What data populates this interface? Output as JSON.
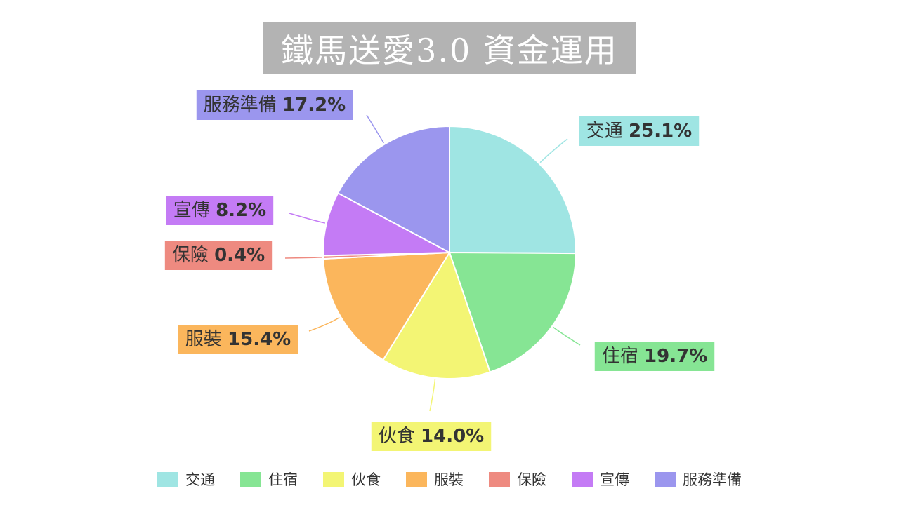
{
  "chart_data": {
    "type": "pie",
    "title": "鐵馬送愛3.0 資金運用",
    "categories": [
      "交通",
      "住宿",
      "伙食",
      "服裝",
      "保險",
      "宣傳",
      "服務準備"
    ],
    "values": [
      25.1,
      19.7,
      14.0,
      15.4,
      0.4,
      8.2,
      17.2
    ],
    "value_labels": [
      "25.1%",
      "19.7%",
      "14.0%",
      "15.4%",
      "0.4%",
      "8.2%",
      "17.2%"
    ],
    "colors": [
      "#9fe5e3",
      "#86e594",
      "#f3f574",
      "#fbb65c",
      "#ee8a80",
      "#c47bf5",
      "#9b96ee"
    ],
    "start_angle_deg": 0,
    "direction": "clockwise",
    "data_labels": "outside-with-leader-lines",
    "legend_position": "bottom"
  }
}
